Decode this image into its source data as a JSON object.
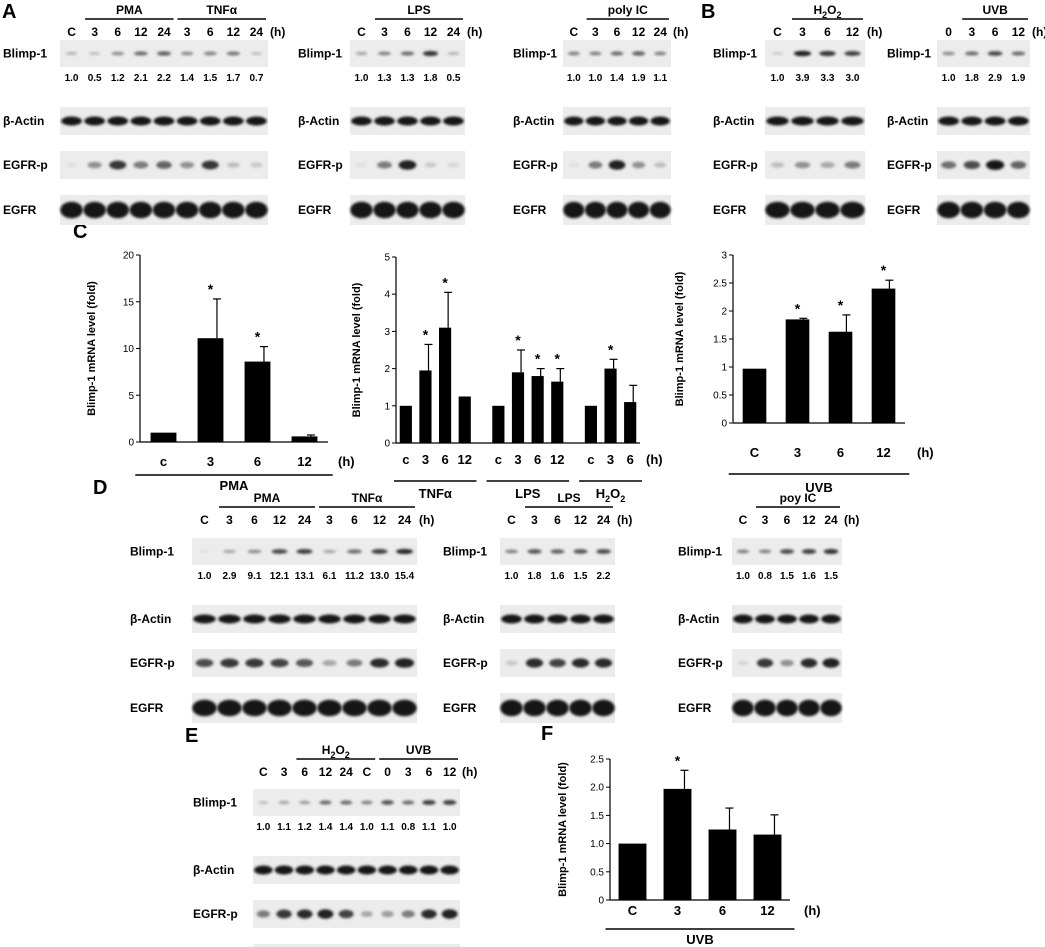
{
  "panel_letters": [
    "A",
    "B",
    "C",
    "D",
    "E",
    "F"
  ],
  "protein_labels": {
    "blimp": "Blimp-1",
    "actin": "β-Actin",
    "egfrp": "EGFR-p",
    "egfr": "EGFR"
  },
  "hours_unit": "(h)",
  "blots": [
    {
      "letter": "A",
      "groups": [
        {
          "name": "PMA",
          "lanes": [
            "3",
            "6",
            "12",
            "24"
          ]
        },
        {
          "name": "TNFα",
          "lanes": [
            "3",
            "6",
            "12",
            "24"
          ]
        }
      ],
      "lanes": [
        "C",
        "3",
        "6",
        "12",
        "24",
        "3",
        "6",
        "12",
        "24"
      ],
      "quant": [
        "1.0",
        "0.5",
        "1.2",
        "2.1",
        "2.2",
        "1.4",
        "1.5",
        "1.7",
        "0.7"
      ],
      "blimp_int": [
        0.25,
        0.2,
        0.4,
        0.55,
        0.6,
        0.4,
        0.45,
        0.5,
        0.2
      ],
      "egfrp_int": [
        0.05,
        0.4,
        0.8,
        0.5,
        0.6,
        0.4,
        0.8,
        0.2,
        0.15
      ]
    },
    {
      "groups": [
        {
          "name": "LPS",
          "lanes": [
            "3",
            "6",
            "12",
            "24"
          ]
        }
      ],
      "lanes": [
        "C",
        "3",
        "6",
        "12",
        "24"
      ],
      "quant": [
        "1.0",
        "1.3",
        "1.3",
        "1.8",
        "0.5"
      ],
      "blimp_int": [
        0.3,
        0.45,
        0.55,
        0.8,
        0.25
      ],
      "egfrp_int": [
        0.05,
        0.5,
        0.9,
        0.15,
        0.1
      ]
    },
    {
      "groups": [
        {
          "name": "poly IC",
          "lanes": [
            "3",
            "6",
            "12",
            "24"
          ]
        }
      ],
      "lanes": [
        "C",
        "3",
        "6",
        "12",
        "24"
      ],
      "quant": [
        "1.0",
        "1.0",
        "1.4",
        "1.9",
        "1.1"
      ],
      "blimp_int": [
        0.45,
        0.45,
        0.55,
        0.6,
        0.45
      ],
      "egfrp_int": [
        0.05,
        0.5,
        0.9,
        0.4,
        0.2
      ]
    },
    {
      "letter": "B",
      "groups": [
        {
          "name": "H2O2",
          "lanes": [
            "3",
            "6",
            "12"
          ]
        }
      ],
      "lanes": [
        "C",
        "3",
        "6",
        "12"
      ],
      "quant": [
        "1.0",
        "3.9",
        "3.3",
        "3.0"
      ],
      "blimp_int": [
        0.15,
        0.9,
        0.8,
        0.75
      ],
      "egfrp_int": [
        0.2,
        0.4,
        0.3,
        0.5
      ]
    },
    {
      "groups": [
        {
          "name": "UVB",
          "lanes": [
            "3",
            "6",
            "12"
          ]
        }
      ],
      "lanes": [
        "0",
        "3",
        "6",
        "12"
      ],
      "quant": [
        "1.0",
        "1.8",
        "2.9",
        "1.9"
      ],
      "blimp_int": [
        0.4,
        0.55,
        0.7,
        0.55
      ],
      "egfrp_int": [
        0.55,
        0.7,
        0.95,
        0.6
      ]
    },
    {
      "letter": "D",
      "groups": [
        {
          "name": "PMA",
          "lanes": [
            "3",
            "6",
            "12",
            "24"
          ]
        },
        {
          "name": "TNFα",
          "lanes": [
            "3",
            "6",
            "12",
            "24"
          ]
        }
      ],
      "lanes": [
        "C",
        "3",
        "6",
        "12",
        "24",
        "3",
        "6",
        "12",
        "24"
      ],
      "quant": [
        "1.0",
        "2.9",
        "9.1",
        "12.1",
        "13.1",
        "6.1",
        "11.2",
        "13.0",
        "15.4"
      ],
      "blimp_int": [
        0.05,
        0.3,
        0.4,
        0.7,
        0.75,
        0.3,
        0.55,
        0.75,
        0.85
      ],
      "egfrp_int": [
        0.7,
        0.8,
        0.8,
        0.75,
        0.65,
        0.3,
        0.5,
        0.85,
        0.9
      ]
    },
    {
      "groups": [
        {
          "name": "LPS",
          "lanes": [
            "3",
            "6",
            "12",
            "24"
          ]
        }
      ],
      "lanes": [
        "C",
        "3",
        "6",
        "12",
        "24"
      ],
      "quant": [
        "1.0",
        "1.8",
        "1.6",
        "1.5",
        "2.2"
      ],
      "blimp_int": [
        0.45,
        0.65,
        0.6,
        0.65,
        0.7
      ],
      "egfrp_int": [
        0.15,
        0.85,
        0.75,
        0.85,
        0.85
      ]
    },
    {
      "groups": [
        {
          "name": "poy IC",
          "lanes": [
            "3",
            "6",
            "12",
            "24"
          ]
        }
      ],
      "lanes": [
        "C",
        "3",
        "6",
        "12",
        "24"
      ],
      "quant": [
        "1.0",
        "0.8",
        "1.5",
        "1.6",
        "1.5"
      ],
      "blimp_int": [
        0.45,
        0.45,
        0.7,
        0.75,
        0.8
      ],
      "egfrp_int": [
        0.1,
        0.8,
        0.4,
        0.85,
        0.9
      ]
    },
    {
      "letter": "E",
      "groups": [
        {
          "name": "H2O2",
          "lanes": [
            "3",
            "6",
            "12",
            "24"
          ]
        },
        {
          "name": "UVB",
          "lanes": [
            "0",
            "3",
            "6",
            "12"
          ]
        }
      ],
      "lanes": [
        "C",
        "3",
        "6",
        "12",
        "24",
        "C",
        "0",
        "3",
        "6",
        "12"
      ],
      "quant": [
        "1.0",
        "1.1",
        "1.2",
        "1.4",
        "1.4",
        "1.0",
        "1.1",
        "0.8",
        "1.1",
        "1.0"
      ],
      "blimp_int": [
        0.2,
        0.3,
        0.35,
        0.55,
        0.55,
        0.45,
        0.65,
        0.55,
        0.75,
        0.75
      ],
      "egfrp_int": [
        0.5,
        0.8,
        0.85,
        0.9,
        0.75,
        0.3,
        0.35,
        0.5,
        0.85,
        0.9
      ]
    }
  ],
  "chart_data": [
    {
      "type": "bar",
      "panel": "C",
      "categories": [
        "c",
        "3",
        "6",
        "12"
      ],
      "values": [
        1,
        11.1,
        8.6,
        0.6
      ],
      "errors": [
        0,
        4.2,
        1.6,
        0.15
      ],
      "significant": [
        false,
        true,
        true,
        false
      ],
      "ylabel": "Blimp-1 mRNA level  (fold)",
      "ylim": [
        0,
        20
      ],
      "yticks": [
        "0",
        "5",
        "10",
        "15",
        "20"
      ],
      "unit": "(h)",
      "group_labels": [
        {
          "name": "PMA",
          "span": [
            0,
            3
          ]
        }
      ]
    },
    {
      "type": "bar",
      "categories": [
        "c",
        "3",
        "6",
        "12",
        "c",
        "3",
        "6",
        "12",
        "c",
        "3",
        "6"
      ],
      "values": [
        1,
        1.95,
        3.1,
        1.25,
        1,
        1.9,
        1.8,
        1.65,
        1,
        2.0,
        1.1
      ],
      "errors": [
        0,
        0.7,
        0.95,
        0,
        0,
        0.6,
        0.2,
        0.35,
        0,
        0.25,
        0.45
      ],
      "significant": [
        false,
        true,
        true,
        false,
        false,
        true,
        true,
        true,
        false,
        true,
        false
      ],
      "ylabel": "Blimp-1 mRNA level  (fold)",
      "ylim": [
        0,
        5
      ],
      "yticks": [
        "0",
        "1",
        "2",
        "3",
        "4",
        "5"
      ],
      "unit": "(h)",
      "group_labels": [
        {
          "name": "TNFα",
          "span": [
            0,
            3
          ]
        },
        {
          "name": "LPS",
          "span": [
            4,
            7
          ]
        },
        {
          "name": "H2O2",
          "span": [
            8,
            10
          ]
        }
      ]
    },
    {
      "type": "bar",
      "categories": [
        "C",
        "3",
        "6",
        "12"
      ],
      "values": [
        0.97,
        1.85,
        1.63,
        2.4
      ],
      "errors": [
        0,
        0.02,
        0.3,
        0.15
      ],
      "significant": [
        false,
        true,
        true,
        true
      ],
      "ylabel": "Blimp-1 mRNA level  (fold)",
      "ylim": [
        0,
        3
      ],
      "yticks": [
        "0",
        "0.5",
        "1",
        "1.5",
        "2",
        "2.5",
        "3"
      ],
      "unit": "(h)",
      "group_labels": [
        {
          "name": "UVB",
          "span": [
            0,
            3
          ]
        }
      ]
    },
    {
      "type": "bar",
      "panel": "F",
      "categories": [
        "C",
        "3",
        "6",
        "12"
      ],
      "values": [
        1.0,
        1.97,
        1.25,
        1.16
      ],
      "errors": [
        0,
        0.33,
        0.38,
        0.35
      ],
      "significant": [
        false,
        true,
        false,
        false
      ],
      "ylabel": "Blimp-1 mRNA level  (fold)",
      "ylim": [
        0,
        2.5
      ],
      "yticks": [
        "0",
        "0.5",
        "1.0",
        "1.5",
        "2.0",
        "2.5"
      ],
      "unit": "(h)",
      "group_labels": [
        {
          "name": "UVB",
          "span": [
            0,
            3
          ]
        }
      ]
    }
  ]
}
